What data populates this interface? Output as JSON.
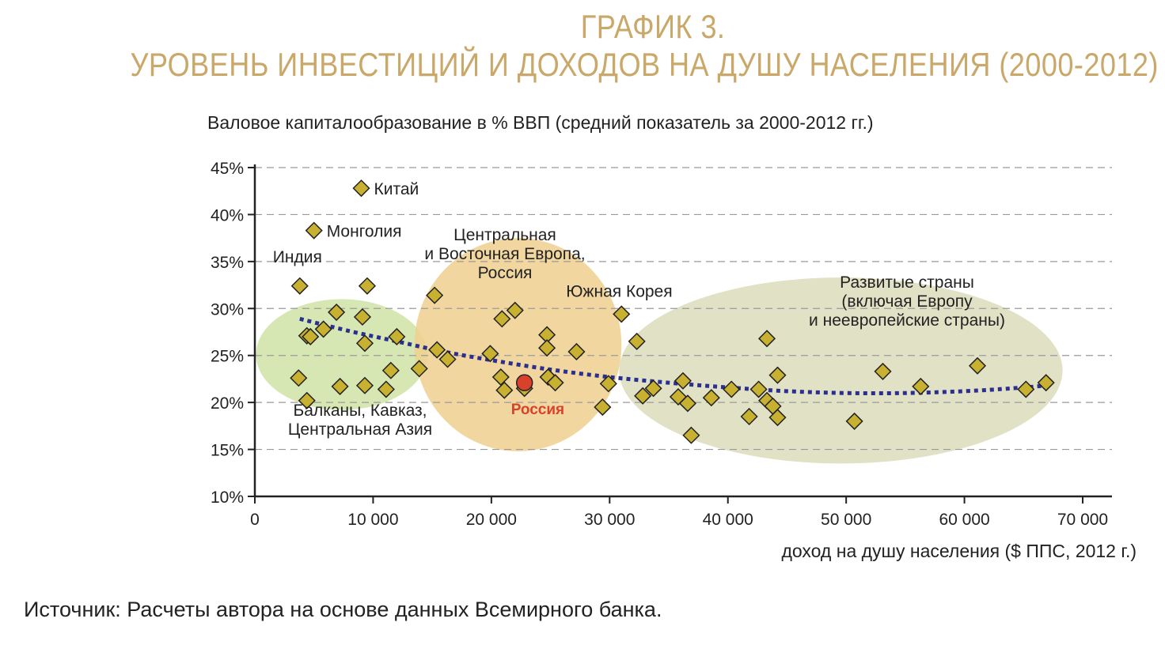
{
  "title_line1": "ГРАФИК 3.",
  "title_line2": "УРОВЕНЬ ИНВЕСТИЦИЙ И ДОХОДОВ НА ДУШУ НАСЕЛЕНИЯ (2000-2012)",
  "source": "Источник: Расчеты автора на основе данных Всемирного банка.",
  "colors": {
    "title": "#c9a86a",
    "marker": "#c8b030",
    "russia": "#d9412b",
    "trend": "#2b2f8f",
    "group_green": "#cfe3a6",
    "group_orange": "#efd08e",
    "group_olive": "#dcdcbc"
  },
  "chart_data": {
    "type": "scatter",
    "xlabel": "доход на душу населения ($ ППС, 2012 г.)",
    "ylabel": "Валовое капиталообразование в % ВВП (средний показатель за 2000-2012 гг.)",
    "xlim": [
      0,
      70000
    ],
    "ylim": [
      10,
      45
    ],
    "x_ticks": [
      0,
      10000,
      20000,
      30000,
      40000,
      50000,
      60000,
      70000
    ],
    "x_tick_labels": [
      "0",
      "10 000",
      "20 000",
      "30 000",
      "40 000",
      "50 000",
      "60 000",
      "70 000"
    ],
    "y_ticks": [
      10,
      15,
      20,
      25,
      30,
      35,
      40,
      45
    ],
    "y_tick_labels": [
      "10%",
      "15%",
      "20%",
      "25%",
      "30%",
      "35%",
      "40%",
      "45%"
    ],
    "grid": "horizontal dashed",
    "points": [
      {
        "x": 9000,
        "y": 42.8,
        "label": "Китай"
      },
      {
        "x": 5000,
        "y": 38.3,
        "label": "Монголия"
      },
      {
        "x": 3800,
        "y": 32.4,
        "label": "Индия"
      },
      {
        "x": 9500,
        "y": 32.4
      },
      {
        "x": 6900,
        "y": 29.6
      },
      {
        "x": 9100,
        "y": 29.1
      },
      {
        "x": 5800,
        "y": 27.8
      },
      {
        "x": 4400,
        "y": 27.1
      },
      {
        "x": 4700,
        "y": 27.0
      },
      {
        "x": 12000,
        "y": 27.0
      },
      {
        "x": 9300,
        "y": 26.3
      },
      {
        "x": 11500,
        "y": 23.4
      },
      {
        "x": 13900,
        "y": 23.6
      },
      {
        "x": 3700,
        "y": 22.6
      },
      {
        "x": 7200,
        "y": 21.7
      },
      {
        "x": 9300,
        "y": 21.8
      },
      {
        "x": 11100,
        "y": 21.4
      },
      {
        "x": 4400,
        "y": 20.2
      },
      {
        "x": 15200,
        "y": 31.4
      },
      {
        "x": 22000,
        "y": 29.8
      },
      {
        "x": 20900,
        "y": 28.9
      },
      {
        "x": 24700,
        "y": 27.2
      },
      {
        "x": 15400,
        "y": 25.6
      },
      {
        "x": 24700,
        "y": 25.8
      },
      {
        "x": 19900,
        "y": 25.2
      },
      {
        "x": 16300,
        "y": 24.6
      },
      {
        "x": 27200,
        "y": 25.4
      },
      {
        "x": 20800,
        "y": 22.7
      },
      {
        "x": 24800,
        "y": 22.7
      },
      {
        "x": 25400,
        "y": 22.1
      },
      {
        "x": 21100,
        "y": 21.3
      },
      {
        "x": 22800,
        "y": 21.5
      },
      {
        "x": 29900,
        "y": 22.0
      },
      {
        "x": 29400,
        "y": 19.5
      },
      {
        "x": 31000,
        "y": 29.4,
        "label": "Южная Корея"
      },
      {
        "x": 32300,
        "y": 26.5
      },
      {
        "x": 33700,
        "y": 21.5
      },
      {
        "x": 32800,
        "y": 20.7
      },
      {
        "x": 36200,
        "y": 22.3
      },
      {
        "x": 35800,
        "y": 20.6
      },
      {
        "x": 36600,
        "y": 19.9
      },
      {
        "x": 36900,
        "y": 16.5
      },
      {
        "x": 38600,
        "y": 20.5
      },
      {
        "x": 40300,
        "y": 21.4
      },
      {
        "x": 42600,
        "y": 21.4
      },
      {
        "x": 41800,
        "y": 18.5
      },
      {
        "x": 43300,
        "y": 26.8
      },
      {
        "x": 43300,
        "y": 20.2
      },
      {
        "x": 43800,
        "y": 19.6
      },
      {
        "x": 44200,
        "y": 22.9
      },
      {
        "x": 44200,
        "y": 18.4
      },
      {
        "x": 50700,
        "y": 18.0
      },
      {
        "x": 53100,
        "y": 23.3
      },
      {
        "x": 56300,
        "y": 21.7
      },
      {
        "x": 61100,
        "y": 23.9
      },
      {
        "x": 65200,
        "y": 21.4
      },
      {
        "x": 66900,
        "y": 22.1
      }
    ],
    "highlight": {
      "x": 22800,
      "y": 22.1,
      "label": "Россия"
    },
    "trend": [
      {
        "x": 3800,
        "y": 28.9
      },
      {
        "x": 8000,
        "y": 27.6
      },
      {
        "x": 12000,
        "y": 26.5
      },
      {
        "x": 16000,
        "y": 25.4
      },
      {
        "x": 20000,
        "y": 24.5
      },
      {
        "x": 25000,
        "y": 23.5
      },
      {
        "x": 30000,
        "y": 22.7
      },
      {
        "x": 35000,
        "y": 22.1
      },
      {
        "x": 40000,
        "y": 21.6
      },
      {
        "x": 45000,
        "y": 21.2
      },
      {
        "x": 50000,
        "y": 21.0
      },
      {
        "x": 55000,
        "y": 21.0
      },
      {
        "x": 60000,
        "y": 21.2
      },
      {
        "x": 64000,
        "y": 21.5
      },
      {
        "x": 67000,
        "y": 21.8
      }
    ],
    "groups": [
      {
        "lines": [
          "Балканы, Кавказ,",
          "Центральная Азия"
        ],
        "x_range": [
          100,
          14600
        ],
        "y_range": [
          19.2,
          31.0
        ]
      },
      {
        "lines": [
          "Центральная",
          "и Восточная Европа,",
          "Россия"
        ],
        "x_range": [
          13500,
          31000
        ],
        "y_range": [
          14.8,
          37.5
        ]
      },
      {
        "lines": [
          "Развитые страны",
          "(включая Европу",
          "и неевропейские страны)"
        ],
        "x_range": [
          30800,
          68300
        ],
        "y_range": [
          13.5,
          33.3
        ]
      }
    ]
  }
}
